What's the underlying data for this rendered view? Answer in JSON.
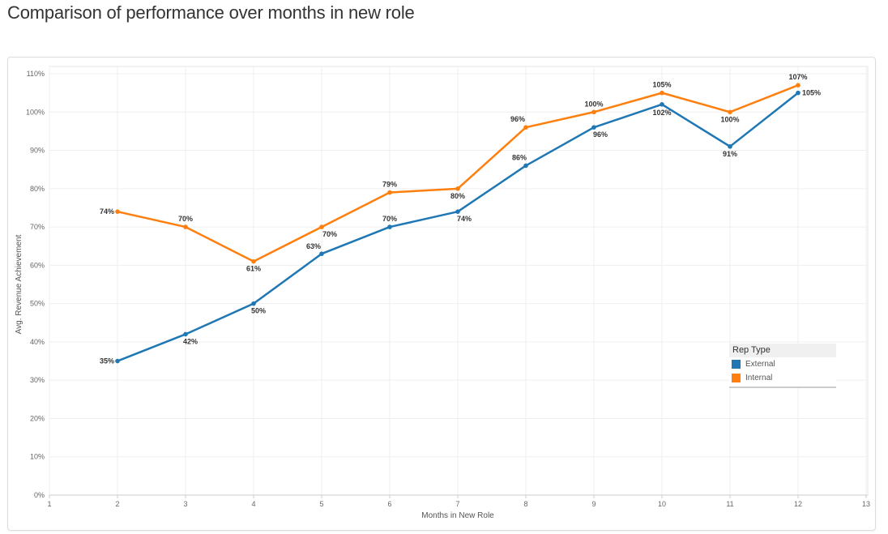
{
  "page_title": "Comparison of performance over months in new role",
  "chart_data": {
    "type": "line",
    "title": "",
    "xlabel": "Months in New Role",
    "ylabel": "Avg. Revenue Achievement",
    "x": [
      2,
      3,
      4,
      5,
      6,
      7,
      8,
      9,
      10,
      11,
      12
    ],
    "xlim": [
      1,
      13
    ],
    "ylim": [
      0,
      110
    ],
    "x_ticks": [
      "1",
      "2",
      "3",
      "4",
      "5",
      "6",
      "7",
      "8",
      "9",
      "10",
      "11",
      "12",
      "13"
    ],
    "y_ticks": [
      "0%",
      "10%",
      "20%",
      "30%",
      "40%",
      "50%",
      "60%",
      "70%",
      "80%",
      "90%",
      "100%",
      "110%"
    ],
    "grid": true,
    "legend": {
      "title": "Rep Type",
      "placement": "bottom-right"
    },
    "series": [
      {
        "name": "External",
        "color": "#1f77b4",
        "values": [
          35,
          42,
          50,
          63,
          70,
          74,
          86,
          96,
          102,
          91,
          105
        ],
        "labels": [
          "35%",
          "42%",
          "50%",
          "63%",
          "70%",
          "74%",
          "86%",
          "96%",
          "102%",
          "91%",
          "105%"
        ]
      },
      {
        "name": "Internal",
        "color": "#ff7f0e",
        "values": [
          74,
          70,
          61,
          70,
          79,
          80,
          96,
          100,
          105,
          100,
          107
        ],
        "labels": [
          "74%",
          "70%",
          "61%",
          "70%",
          "79%",
          "80%",
          "96%",
          "100%",
          "105%",
          "100%",
          "107%"
        ]
      }
    ]
  }
}
